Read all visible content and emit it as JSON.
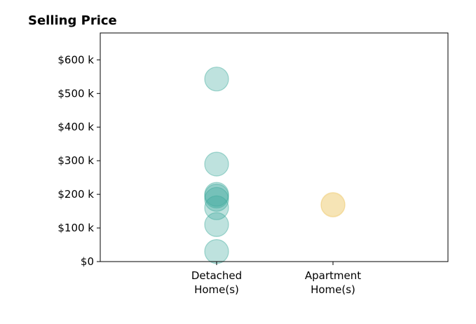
{
  "chart_data": {
    "type": "scatter",
    "title": "Selling Price",
    "xlabel": "",
    "ylabel": "",
    "categories": [
      {
        "lines": [
          "Detached",
          "Home(s)"
        ]
      },
      {
        "lines": [
          "Apartment",
          "Home(s)"
        ]
      }
    ],
    "ylim": [
      0,
      680000
    ],
    "y_ticks": [
      {
        "value": 0,
        "label": "$0"
      },
      {
        "value": 100000,
        "label": "$100 k"
      },
      {
        "value": 200000,
        "label": "$200 k"
      },
      {
        "value": 300000,
        "label": "$300 k"
      },
      {
        "value": 400000,
        "label": "$400 k"
      },
      {
        "value": 500000,
        "label": "$500 k"
      },
      {
        "value": 600000,
        "label": "$600 k"
      }
    ],
    "grid": false,
    "series": [
      {
        "category_index": 0,
        "color": "#3aa89a",
        "values": [
          543000,
          290000,
          200000,
          195000,
          185000,
          160000,
          110000,
          30000
        ]
      },
      {
        "category_index": 1,
        "color": "#f0cf7a",
        "values": [
          170000,
          168000
        ]
      }
    ]
  }
}
